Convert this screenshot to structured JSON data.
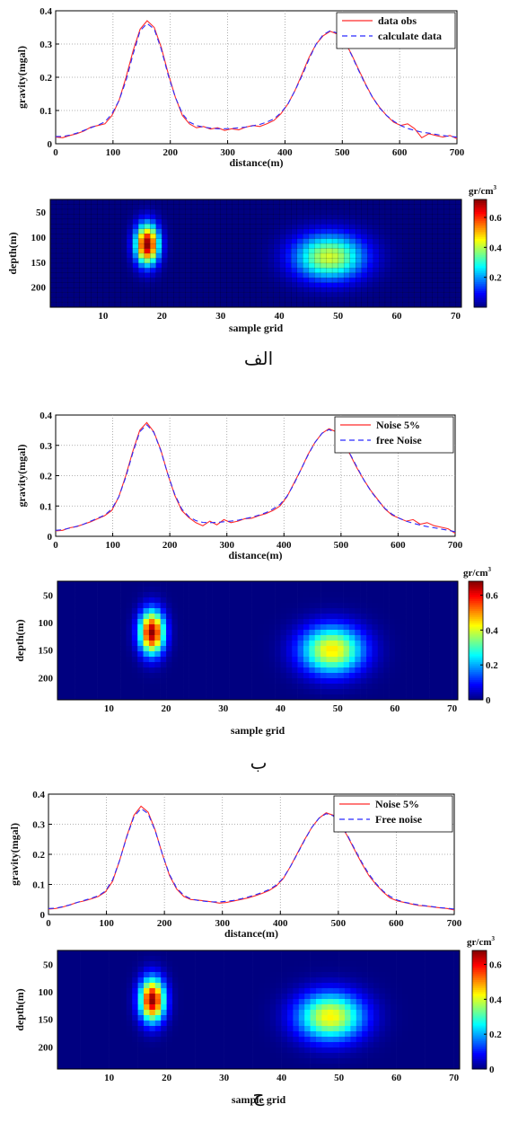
{
  "panels": [
    {
      "caption": "الف",
      "line": {
        "type": "line",
        "xlabel": "distance(m)",
        "ylabel": "gravity(mgal)",
        "xlim": [
          0,
          700
        ],
        "ylim": [
          0,
          0.4
        ],
        "xticks": [
          "0",
          "100",
          "200",
          "300",
          "400",
          "500",
          "600",
          "700"
        ],
        "yticks": [
          "0",
          "0.1",
          "0.2",
          "0.3",
          "0.4"
        ],
        "legend_position": "top-right",
        "series": [
          {
            "name": "data obs",
            "color": "#ff2a2a",
            "dash": "none",
            "values": [
              0.02,
              0.018,
              0.025,
              0.03,
              0.038,
              0.05,
              0.055,
              0.06,
              0.085,
              0.13,
              0.2,
              0.28,
              0.345,
              0.37,
              0.35,
              0.29,
              0.21,
              0.14,
              0.085,
              0.06,
              0.048,
              0.052,
              0.044,
              0.048,
              0.04,
              0.045,
              0.042,
              0.05,
              0.055,
              0.052,
              0.06,
              0.07,
              0.09,
              0.12,
              0.16,
              0.21,
              0.26,
              0.3,
              0.325,
              0.338,
              0.33,
              0.31,
              0.27,
              0.225,
              0.18,
              0.14,
              0.11,
              0.085,
              0.065,
              0.055,
              0.06,
              0.045,
              0.018,
              0.03,
              0.025,
              0.02,
              0.025,
              0.015
            ]
          },
          {
            "name": "calculate data",
            "color": "#2a2aff",
            "dash": "6,4",
            "values": [
              0.022,
              0.022,
              0.026,
              0.032,
              0.04,
              0.048,
              0.056,
              0.066,
              0.09,
              0.13,
              0.19,
              0.27,
              0.34,
              0.362,
              0.345,
              0.285,
              0.205,
              0.14,
              0.09,
              0.065,
              0.055,
              0.05,
              0.047,
              0.045,
              0.045,
              0.046,
              0.048,
              0.05,
              0.054,
              0.058,
              0.065,
              0.075,
              0.093,
              0.12,
              0.16,
              0.205,
              0.255,
              0.3,
              0.328,
              0.34,
              0.333,
              0.308,
              0.268,
              0.222,
              0.178,
              0.14,
              0.108,
              0.085,
              0.068,
              0.055,
              0.046,
              0.04,
              0.035,
              0.032,
              0.028,
              0.025,
              0.022,
              0.02
            ]
          }
        ]
      },
      "heatmap": {
        "type": "heatmap",
        "xlabel": "sample grid",
        "ylabel": "depth(m)",
        "xticks": [
          "10",
          "20",
          "30",
          "40",
          "50",
          "60",
          "70"
        ],
        "yticks": [
          "50",
          "100",
          "150",
          "200"
        ],
        "xlim": [
          1,
          71
        ],
        "ylim": [
          25,
          240
        ],
        "colorbar_unit": "gr/cm",
        "colorbar_unit_sup": "3",
        "colorbar_ticks": [
          "0.6",
          "0.4",
          "0.2"
        ],
        "colorbar_range": [
          0,
          0.72
        ],
        "grid_lines": true,
        "bodies": [
          {
            "center_x": 17.5,
            "center_depth": 115,
            "sigma_x": 1.4,
            "sigma_depth": 28,
            "max_density": 0.71
          },
          {
            "center_x": 48.5,
            "center_depth": 140,
            "sigma_x": 4.2,
            "sigma_depth": 32,
            "max_density": 0.42
          }
        ]
      }
    },
    {
      "caption": "ب",
      "line": {
        "type": "line",
        "xlabel": "distance(m)",
        "ylabel": "gravity(mgal)",
        "xlim": [
          0,
          700
        ],
        "ylim": [
          0,
          0.4
        ],
        "xticks": [
          "0",
          "100",
          "200",
          "300",
          "400",
          "500",
          "600",
          "700"
        ],
        "yticks": [
          "0",
          "0.1",
          "0.2",
          "0.3",
          "0.4"
        ],
        "legend_position": "top-right",
        "series": [
          {
            "name": "Noise 5%",
            "color": "#ff2a2a",
            "dash": "none",
            "values": [
              0.018,
              0.02,
              0.028,
              0.032,
              0.04,
              0.048,
              0.058,
              0.068,
              0.085,
              0.13,
              0.2,
              0.28,
              0.35,
              0.375,
              0.345,
              0.285,
              0.205,
              0.135,
              0.085,
              0.062,
              0.045,
              0.035,
              0.05,
              0.038,
              0.055,
              0.045,
              0.05,
              0.058,
              0.06,
              0.068,
              0.075,
              0.085,
              0.1,
              0.13,
              0.175,
              0.22,
              0.27,
              0.31,
              0.34,
              0.355,
              0.345,
              0.315,
              0.27,
              0.225,
              0.185,
              0.15,
              0.12,
              0.09,
              0.07,
              0.06,
              0.05,
              0.055,
              0.04,
              0.045,
              0.035,
              0.03,
              0.025,
              0.01
            ]
          },
          {
            "name": "free Noise",
            "color": "#2a2aff",
            "dash": "6,4",
            "values": [
              0.02,
              0.022,
              0.027,
              0.033,
              0.04,
              0.05,
              0.06,
              0.07,
              0.09,
              0.13,
              0.195,
              0.275,
              0.345,
              0.368,
              0.343,
              0.283,
              0.205,
              0.138,
              0.09,
              0.065,
              0.052,
              0.046,
              0.045,
              0.046,
              0.048,
              0.05,
              0.053,
              0.058,
              0.063,
              0.07,
              0.078,
              0.09,
              0.105,
              0.132,
              0.172,
              0.22,
              0.268,
              0.31,
              0.34,
              0.352,
              0.342,
              0.315,
              0.272,
              0.228,
              0.185,
              0.148,
              0.118,
              0.092,
              0.073,
              0.06,
              0.05,
              0.043,
              0.037,
              0.032,
              0.028,
              0.024,
              0.02,
              0.015
            ]
          }
        ]
      },
      "heatmap": {
        "type": "heatmap",
        "xlabel": "sample grid",
        "ylabel": "depth(m)",
        "xticks": [
          "10",
          "20",
          "30",
          "40",
          "50",
          "60",
          "70"
        ],
        "yticks": [
          "50",
          "100",
          "150",
          "200"
        ],
        "xlim": [
          1,
          71
        ],
        "ylim": [
          25,
          240
        ],
        "colorbar_unit": "gr/cm",
        "colorbar_unit_sup": "3",
        "colorbar_ticks": [
          "0.6",
          "0.4",
          "0.2",
          "0"
        ],
        "colorbar_range": [
          0,
          0.68
        ],
        "grid_lines": false,
        "bodies": [
          {
            "center_x": 17.5,
            "center_depth": 118,
            "sigma_x": 1.5,
            "sigma_depth": 27,
            "max_density": 0.67
          },
          {
            "center_x": 49,
            "center_depth": 150,
            "sigma_x": 3.8,
            "sigma_depth": 30,
            "max_density": 0.44
          }
        ]
      }
    },
    {
      "caption": "ج",
      "line": {
        "type": "line",
        "xlabel": "distance(m)",
        "ylabel": "gravity(mgal)",
        "xlim": [
          0,
          700
        ],
        "ylim": [
          0,
          0.4
        ],
        "xticks": [
          "0",
          "100",
          "200",
          "300",
          "400",
          "500",
          "600",
          "700"
        ],
        "yticks": [
          "0",
          "0.1",
          "0.2",
          "0.3",
          "0.4"
        ],
        "legend_position": "top-right",
        "series": [
          {
            "name": "Noise 5%",
            "color": "#ff2a2a",
            "dash": "none",
            "values": [
              0.018,
              0.02,
              0.025,
              0.032,
              0.04,
              0.045,
              0.052,
              0.06,
              0.075,
              0.11,
              0.18,
              0.26,
              0.33,
              0.36,
              0.34,
              0.28,
              0.2,
              0.13,
              0.085,
              0.06,
              0.05,
              0.048,
              0.045,
              0.042,
              0.038,
              0.04,
              0.045,
              0.05,
              0.055,
              0.062,
              0.07,
              0.08,
              0.095,
              0.12,
              0.16,
              0.205,
              0.25,
              0.29,
              0.32,
              0.338,
              0.33,
              0.3,
              0.26,
              0.215,
              0.17,
              0.13,
              0.1,
              0.075,
              0.055,
              0.045,
              0.04,
              0.035,
              0.03,
              0.028,
              0.025,
              0.022,
              0.02,
              0.015
            ]
          },
          {
            "name": "Free noise",
            "color": "#2a2aff",
            "dash": "6,4",
            "values": [
              0.02,
              0.021,
              0.026,
              0.032,
              0.04,
              0.047,
              0.054,
              0.062,
              0.078,
              0.115,
              0.18,
              0.258,
              0.325,
              0.352,
              0.335,
              0.278,
              0.2,
              0.133,
              0.088,
              0.064,
              0.052,
              0.047,
              0.044,
              0.042,
              0.042,
              0.044,
              0.047,
              0.052,
              0.058,
              0.065,
              0.073,
              0.083,
              0.098,
              0.122,
              0.16,
              0.203,
              0.248,
              0.29,
              0.32,
              0.335,
              0.328,
              0.302,
              0.263,
              0.218,
              0.174,
              0.135,
              0.103,
              0.078,
              0.06,
              0.048,
              0.041,
              0.036,
              0.032,
              0.029,
              0.026,
              0.023,
              0.021,
              0.018
            ]
          }
        ]
      },
      "heatmap": {
        "type": "heatmap",
        "xlabel": "sample grid",
        "ylabel": "depth(m)",
        "xticks": [
          "10",
          "20",
          "30",
          "40",
          "50",
          "60",
          "70"
        ],
        "yticks": [
          "50",
          "100",
          "150",
          "200"
        ],
        "xlim": [
          1,
          71
        ],
        "ylim": [
          25,
          240
        ],
        "colorbar_unit": "gr/cm",
        "colorbar_unit_sup": "3",
        "colorbar_ticks": [
          "0.6",
          "0.4",
          "0.2",
          "0"
        ],
        "colorbar_range": [
          0,
          0.68
        ],
        "grid_lines": false,
        "bodies": [
          {
            "center_x": 17.5,
            "center_depth": 115,
            "sigma_x": 1.5,
            "sigma_depth": 27,
            "max_density": 0.67
          },
          {
            "center_x": 48.5,
            "center_depth": 145,
            "sigma_x": 4.0,
            "sigma_depth": 30,
            "max_density": 0.43
          }
        ]
      }
    }
  ],
  "chart_data": [
    {
      "type": "line",
      "title": "",
      "xlabel": "distance(m)",
      "ylabel": "gravity(mgal)",
      "xlim": [
        0,
        700
      ],
      "ylim": [
        0,
        0.4
      ],
      "grid": true,
      "legend": "top-right",
      "x": [
        0,
        12.3,
        24.6,
        36.8,
        49.1,
        61.4,
        73.7,
        86,
        98.2,
        110.5,
        122.8,
        135.1,
        147.4,
        159.6,
        171.9,
        184.2,
        196.5,
        208.8,
        221.1,
        233.3,
        245.6,
        257.9,
        270.2,
        282.5,
        294.7,
        307,
        319.3,
        331.6,
        343.9,
        356.1,
        368.4,
        380.7,
        393,
        405.3,
        417.5,
        429.8,
        442.1,
        454.4,
        466.7,
        478.9,
        491.2,
        503.5,
        515.8,
        528.1,
        540.4,
        552.6,
        564.9,
        577.2,
        589.5,
        601.8,
        614,
        626.3,
        638.6,
        650.9,
        663.2,
        675.4,
        687.7,
        700
      ],
      "series": [
        {
          "name": "data obs",
          "values": "see panels[0].line.series[0].values"
        },
        {
          "name": "calculate data",
          "values": "see panels[0].line.series[1].values"
        }
      ]
    },
    {
      "type": "heatmap",
      "xlabel": "sample grid",
      "ylabel": "depth(m)",
      "colorbar": "gr/cm3",
      "range": [
        0,
        0.72
      ],
      "anomalies": [
        {
          "x": 17.5,
          "depth": 115,
          "max": 0.71
        },
        {
          "x": 48.5,
          "depth": 140,
          "max": 0.42
        }
      ]
    },
    {
      "type": "line",
      "xlabel": "distance(m)",
      "ylabel": "gravity(mgal)",
      "xlim": [
        0,
        700
      ],
      "ylim": [
        0,
        0.4
      ],
      "series": [
        {
          "name": "Noise 5%"
        },
        {
          "name": "free Noise"
        }
      ]
    },
    {
      "type": "heatmap",
      "xlabel": "sample grid",
      "ylabel": "depth(m)",
      "colorbar": "gr/cm3",
      "range": [
        0,
        0.68
      ],
      "anomalies": [
        {
          "x": 17.5,
          "depth": 118,
          "max": 0.67
        },
        {
          "x": 49,
          "depth": 150,
          "max": 0.44
        }
      ]
    },
    {
      "type": "line",
      "xlabel": "distance(m)",
      "ylabel": "gravity(mgal)",
      "xlim": [
        0,
        700
      ],
      "ylim": [
        0,
        0.4
      ],
      "series": [
        {
          "name": "Noise 5%"
        },
        {
          "name": "Free noise"
        }
      ]
    },
    {
      "type": "heatmap",
      "xlabel": "sample grid",
      "ylabel": "depth(m)",
      "colorbar": "gr/cm3",
      "range": [
        0,
        0.68
      ],
      "anomalies": [
        {
          "x": 17.5,
          "depth": 115,
          "max": 0.67
        },
        {
          "x": 48.5,
          "depth": 145,
          "max": 0.43
        }
      ]
    }
  ]
}
